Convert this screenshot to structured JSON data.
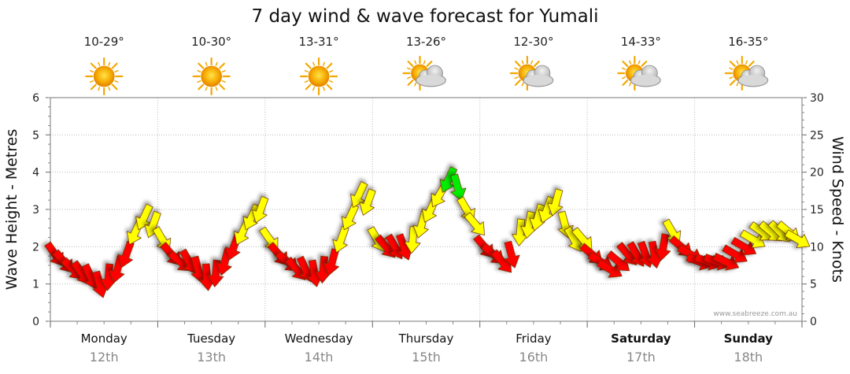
{
  "chart_data": {
    "type": "line",
    "title": "7 day wind & wave forecast for Yumali",
    "credit": "www.seabreeze.com.au",
    "y_left_label": "Wave Height - Metres",
    "y_right_label": "Wind Speed - Knots",
    "y_left_range": [
      0,
      6
    ],
    "y_left_ticks": [
      "0",
      "1",
      "2",
      "3",
      "4",
      "5",
      "6"
    ],
    "y_right_range": [
      0,
      30
    ],
    "y_right_ticks": [
      "0",
      "5",
      "10",
      "15",
      "20",
      "25",
      "30"
    ],
    "grid": true,
    "wind_colors": {
      "low": "#ff0000",
      "mid": "#ffff00",
      "high": "#00ee00"
    },
    "days": [
      {
        "name": "Monday",
        "date": "12th",
        "temp": "10-29°",
        "icon": "sun-icon",
        "weekend": false
      },
      {
        "name": "Tuesday",
        "date": "13th",
        "temp": "10-30°",
        "icon": "sun-icon",
        "weekend": false
      },
      {
        "name": "Wednesday",
        "date": "14th",
        "temp": "13-31°",
        "icon": "sun-icon",
        "weekend": false
      },
      {
        "name": "Thursday",
        "date": "15th",
        "temp": "13-26°",
        "icon": "partly-cloudy-icon",
        "weekend": false
      },
      {
        "name": "Friday",
        "date": "16th",
        "temp": "12-30°",
        "icon": "partly-cloudy-icon",
        "weekend": false
      },
      {
        "name": "Saturday",
        "date": "17th",
        "temp": "14-33°",
        "icon": "partly-cloudy-icon",
        "weekend": true
      },
      {
        "name": "Sunday",
        "date": "18th",
        "temp": "16-35°",
        "icon": "partly-cloudy-icon",
        "weekend": true
      }
    ],
    "wind_speed_knots": [
      9,
      8,
      7,
      6.5,
      6,
      5,
      6,
      7,
      9,
      12,
      14,
      13,
      11,
      9,
      8,
      8,
      7,
      6,
      6.5,
      8,
      10,
      12,
      14,
      15,
      11,
      9,
      8,
      7,
      7,
      6.5,
      7,
      8,
      11,
      14,
      17,
      16,
      11,
      10,
      10,
      10,
      11,
      13,
      15,
      17,
      19,
      18,
      15,
      13,
      10,
      9,
      8,
      9,
      12,
      13,
      14,
      15,
      16,
      13,
      11,
      11,
      9,
      8,
      7,
      8,
      9,
      9,
      9,
      9,
      10,
      12,
      10,
      9,
      8,
      8,
      8,
      8,
      9,
      10,
      11,
      12,
      12,
      12,
      12,
      11
    ],
    "wind_direction_deg": [
      325,
      320,
      315,
      325,
      335,
      345,
      5,
      15,
      20,
      25,
      25,
      20,
      330,
      320,
      310,
      330,
      345,
      355,
      5,
      15,
      20,
      25,
      25,
      20,
      325,
      320,
      310,
      320,
      335,
      350,
      5,
      15,
      20,
      25,
      25,
      20,
      330,
      320,
      330,
      340,
      5,
      15,
      25,
      30,
      25,
      345,
      330,
      320,
      320,
      310,
      320,
      345,
      5,
      10,
      15,
      20,
      15,
      345,
      330,
      320,
      310,
      300,
      300,
      310,
      320,
      330,
      340,
      350,
      10,
      330,
      310,
      300,
      290,
      290,
      290,
      295,
      300,
      300,
      300,
      305,
      310,
      315,
      310,
      300
    ]
  }
}
